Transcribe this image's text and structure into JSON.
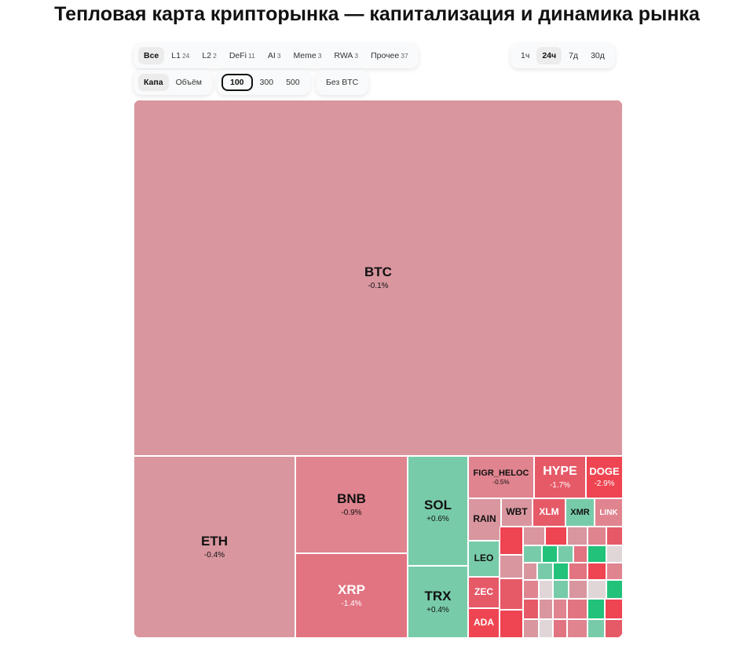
{
  "title": "Тепловая карта крипторынка — капитализация и динамика рынка",
  "filters": [
    {
      "label": "Все",
      "count": ""
    },
    {
      "label": "L1",
      "count": "24"
    },
    {
      "label": "L2",
      "count": "2"
    },
    {
      "label": "DeFi",
      "count": "11"
    },
    {
      "label": "AI",
      "count": "3"
    },
    {
      "label": "Meme",
      "count": "3"
    },
    {
      "label": "RWA",
      "count": "3"
    },
    {
      "label": "Прочее",
      "count": "37"
    }
  ],
  "active_filter": "Все",
  "timeframes": [
    "1ч",
    "24ч",
    "7д",
    "30д"
  ],
  "active_timeframe": "24ч",
  "modes": [
    "Капа",
    "Объём"
  ],
  "active_mode": "Капа",
  "limits": [
    "100",
    "300",
    "500"
  ],
  "active_limit": "100",
  "exclude_btc_label": "Без BTC",
  "colors": {
    "slight_red": "#d9969f",
    "mid_red": "#e0848f",
    "red": "#e27380",
    "strong_red": "#e65a68",
    "deep_red": "#ef4451",
    "green": "#78cba9",
    "bright_green": "#22c27a",
    "gray_tile": "#e0d6d8"
  },
  "tiles": [
    {
      "symbol": "BTC",
      "change": "-0.1%"
    },
    {
      "symbol": "ETH",
      "change": "-0.4%"
    },
    {
      "symbol": "BNB",
      "change": "-0.9%"
    },
    {
      "symbol": "XRP",
      "change": "-1.4%"
    },
    {
      "symbol": "SOL",
      "change": "+0.6%"
    },
    {
      "symbol": "TRX",
      "change": "+0.4%"
    },
    {
      "symbol": "FIGR_HELOC",
      "change": "-0.5%"
    },
    {
      "symbol": "HYPE",
      "change": "-1.7%"
    },
    {
      "symbol": "DOGE",
      "change": "-2.9%"
    },
    {
      "symbol": "RAIN",
      "change": ""
    },
    {
      "symbol": "WBT",
      "change": ""
    },
    {
      "symbol": "XLM",
      "change": ""
    },
    {
      "symbol": "XMR",
      "change": ""
    },
    {
      "symbol": "LINK",
      "change": ""
    },
    {
      "symbol": "LEO",
      "change": ""
    },
    {
      "symbol": "ZEC",
      "change": ""
    },
    {
      "symbol": "ADA",
      "change": ""
    }
  ]
}
